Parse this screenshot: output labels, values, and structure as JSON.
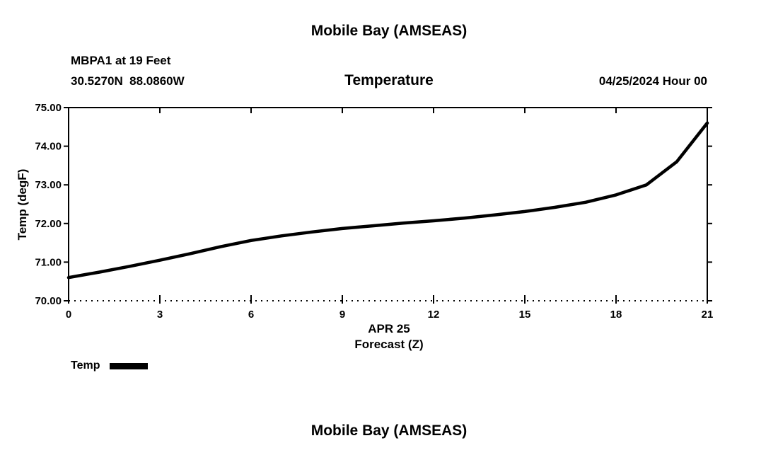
{
  "page": {
    "background": "#ffffff",
    "top_title": "Mobile Bay (AMSEAS)",
    "bottom_title": "Mobile Bay (AMSEAS)"
  },
  "header": {
    "station": "MBPA1 at 19 Feet",
    "coords": "30.5270N  88.0860W",
    "subtitle": "Temperature",
    "datetime": "04/25/2024 Hour 00"
  },
  "legend": {
    "label": "Temp",
    "swatch_color": "#000000"
  },
  "chart_data": {
    "type": "line",
    "title": "Temperature",
    "xlabel_line1": "APR 25",
    "xlabel_line2": "Forecast (Z)",
    "ylabel": "Temp (degF)",
    "xlim": [
      0,
      21
    ],
    "ylim": [
      70,
      75
    ],
    "xticks": [
      0,
      3,
      6,
      9,
      12,
      15,
      18,
      21
    ],
    "xtick_labels": [
      "0",
      "3",
      "6",
      "9",
      "12",
      "15",
      "18",
      "21"
    ],
    "yticks": [
      70,
      71,
      72,
      73,
      74,
      75
    ],
    "ytick_labels": [
      "70.00",
      "71.00",
      "72.00",
      "73.00",
      "74.00",
      "75.00"
    ],
    "grid": false,
    "legend_position": "bottom-left",
    "line_color": "#000000",
    "series": [
      {
        "name": "Temp",
        "color": "#000000",
        "x": [
          0,
          1,
          2,
          3,
          4,
          5,
          6,
          7,
          8,
          9,
          10,
          11,
          12,
          13,
          14,
          15,
          16,
          17,
          18,
          19,
          20,
          21
        ],
        "y": [
          70.6,
          70.74,
          70.89,
          71.05,
          71.22,
          71.4,
          71.56,
          71.68,
          71.78,
          71.87,
          71.94,
          72.01,
          72.07,
          72.14,
          72.22,
          72.31,
          72.42,
          72.55,
          72.74,
          73.0,
          73.6,
          74.6
        ]
      }
    ]
  }
}
